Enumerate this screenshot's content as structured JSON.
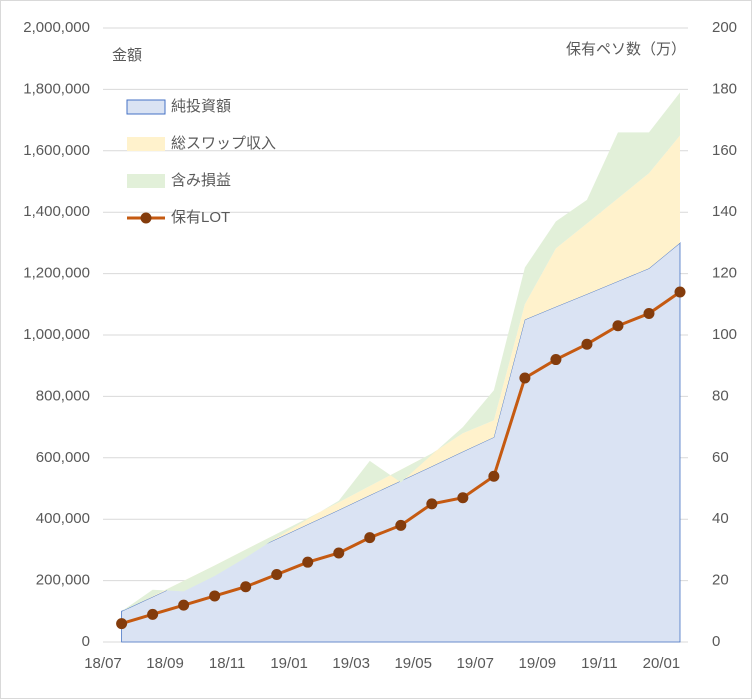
{
  "chart_data": {
    "type": "stacked_area_line",
    "ylabel": "金額",
    "y2label": "保有ペソ数（万）",
    "x": [
      0.6,
      1.6,
      2.6,
      3.6,
      4.6,
      5.6,
      6.6,
      7.6,
      8.6,
      9.6,
      10.6,
      11.6,
      12.6,
      13.6,
      14.6,
      15.6,
      16.6,
      17.6,
      18.6
    ],
    "xlim": [
      0,
      18.6
    ],
    "xticks": [
      {
        "value": 0,
        "label": "18/07"
      },
      {
        "value": 2,
        "label": "18/09"
      },
      {
        "value": 4,
        "label": "18/11"
      },
      {
        "value": 6,
        "label": "19/01"
      },
      {
        "value": 8,
        "label": "19/03"
      },
      {
        "value": 10,
        "label": "19/05"
      },
      {
        "value": 12,
        "label": "19/07"
      },
      {
        "value": 14,
        "label": "19/09"
      },
      {
        "value": 16,
        "label": "19/11"
      },
      {
        "value": 18,
        "label": "20/01"
      }
    ],
    "ylim": [
      0,
      2000000
    ],
    "yticks": [
      0,
      {
        "value": 200000,
        "label": "200,000"
      },
      {
        "value": 400000,
        "label": "400,000"
      },
      {
        "value": 600000,
        "label": "600,000"
      },
      {
        "value": 800000,
        "label": "800,000"
      },
      {
        "value": 1000000,
        "label": "1,000,000"
      },
      {
        "value": 1200000,
        "label": "1,200,000"
      },
      {
        "value": 1400000,
        "label": "1,400,000"
      },
      {
        "value": 1600000,
        "label": "1,600,000"
      },
      {
        "value": 1800000,
        "label": "1,800,000"
      },
      {
        "value": 2000000,
        "label": "2,000,000"
      }
    ],
    "y2lim": [
      0,
      200
    ],
    "y2ticks": [
      0,
      20,
      40,
      60,
      80,
      100,
      120,
      140,
      160,
      180,
      200
    ],
    "grid": true,
    "legend": "top-left",
    "series": [
      {
        "name": "純投資額",
        "color": "#dae3f3",
        "edge": "#4472c4",
        "kind": "area",
        "values": [
          100000,
          147000,
          194000,
          241000,
          289000,
          336000,
          383000,
          430000,
          478000,
          525000,
          572000,
          620000,
          667000,
          1050000,
          1092000,
          1133000,
          1175000,
          1217000,
          1300000
        ]
      },
      {
        "name": "総スワップ収入",
        "color": "#fff2cc",
        "kind": "area",
        "values": [
          0,
          2000,
          5000,
          8000,
          12000,
          16000,
          20000,
          25000,
          30000,
          36000,
          42000,
          60000,
          55000,
          50000,
          190000,
          230000,
          270000,
          310000,
          350000
        ]
      },
      {
        "name": "含み損益",
        "color": "#e2f0d9",
        "kind": "area",
        "values": [
          0,
          21000,
          -34000,
          -34000,
          -26000,
          -12000,
          -3000,
          5000,
          82000,
          -41000,
          -4000,
          20000,
          98000,
          120000,
          88000,
          77000,
          215000,
          133000,
          140000
        ]
      },
      {
        "name": "保有LOT",
        "color": "#c55a11",
        "marker": "#843c0c",
        "kind": "line",
        "axis": "y2",
        "values": [
          6,
          9,
          12,
          15,
          18,
          22,
          26,
          29,
          34,
          38,
          45,
          47,
          54,
          86,
          92,
          97,
          103,
          107,
          114
        ]
      }
    ]
  }
}
